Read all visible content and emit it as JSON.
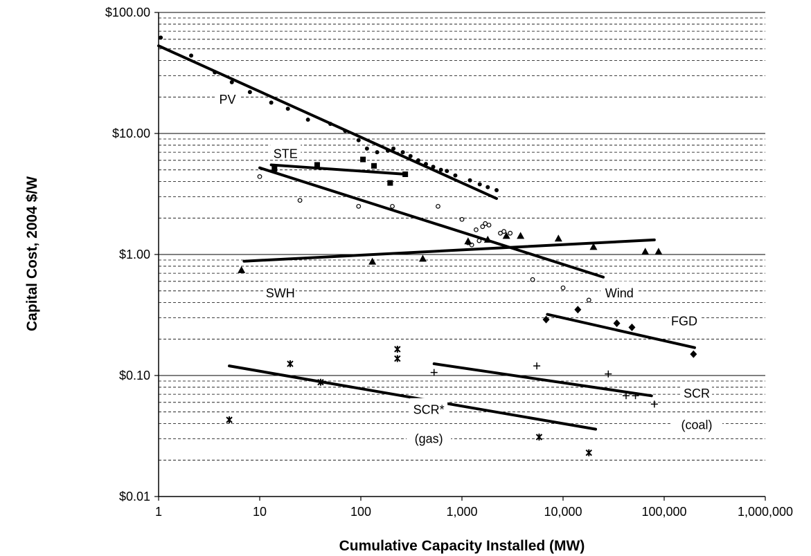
{
  "chart_data": {
    "type": "scatter",
    "title": "",
    "xlabel": "Cumulative Capacity Installed (MW)",
    "ylabel": "Capital Cost, 2004 $/W",
    "xscale": "log",
    "yscale": "log",
    "xlim": [
      1,
      1000000
    ],
    "ylim": [
      0.01,
      100
    ],
    "x_ticks": [
      {
        "value": 1,
        "label": "1"
      },
      {
        "value": 10,
        "label": "10"
      },
      {
        "value": 100,
        "label": "100"
      },
      {
        "value": 1000,
        "label": "1,000"
      },
      {
        "value": 10000,
        "label": "10,000"
      },
      {
        "value": 100000,
        "label": "100,000"
      },
      {
        "value": 1000000,
        "label": "1,000,000"
      }
    ],
    "y_ticks": [
      {
        "value": 0.01,
        "label": "$0.01"
      },
      {
        "value": 0.1,
        "label": "$0.10"
      },
      {
        "value": 1,
        "label": "$1.00"
      },
      {
        "value": 10,
        "label": "$10.00"
      },
      {
        "value": 100,
        "label": "$100.00"
      }
    ],
    "grid": {
      "major_y": "solid",
      "minor_y": "dashed"
    },
    "legend": "none",
    "series": [
      {
        "name": "PV",
        "marker": "dot",
        "points": [
          [
            1.05,
            62
          ],
          [
            2.1,
            44
          ],
          [
            3.6,
            32
          ],
          [
            5.3,
            26.5
          ],
          [
            8,
            22
          ],
          [
            13,
            18
          ],
          [
            19,
            16
          ],
          [
            30,
            13
          ],
          [
            50,
            12
          ],
          [
            70,
            10.5
          ],
          [
            95,
            8.8
          ],
          [
            115,
            7.5
          ],
          [
            145,
            7
          ],
          [
            185,
            7.2
          ],
          [
            210,
            7.5
          ],
          [
            260,
            7
          ],
          [
            310,
            6.5
          ],
          [
            370,
            6
          ],
          [
            440,
            5.6
          ],
          [
            520,
            5.3
          ],
          [
            620,
            5
          ],
          [
            710,
            4.9
          ],
          [
            860,
            4.5
          ],
          [
            1200,
            4.1
          ],
          [
            1500,
            3.8
          ],
          [
            1800,
            3.6
          ],
          [
            2200,
            3.4
          ]
        ],
        "fit": [
          [
            1,
            53
          ],
          [
            2200,
            2.9
          ]
        ]
      },
      {
        "name": "STE",
        "marker": "square",
        "points": [
          [
            14,
            5.1
          ],
          [
            37,
            5.5
          ],
          [
            105,
            6.1
          ],
          [
            135,
            5.4
          ],
          [
            195,
            3.9
          ],
          [
            275,
            4.6
          ]
        ],
        "fit": [
          [
            13,
            5.5
          ],
          [
            280,
            4.6
          ]
        ]
      },
      {
        "name": "Wind",
        "marker": "circle-open",
        "points": [
          [
            10,
            4.4
          ],
          [
            25,
            2.8
          ],
          [
            95,
            2.5
          ],
          [
            205,
            2.5
          ],
          [
            580,
            2.5
          ],
          [
            1000,
            1.95
          ],
          [
            1150,
            1.25
          ],
          [
            1250,
            1.2
          ],
          [
            1380,
            1.6
          ],
          [
            1480,
            1.3
          ],
          [
            1600,
            1.7
          ],
          [
            1700,
            1.8
          ],
          [
            1850,
            1.75
          ],
          [
            2400,
            1.5
          ],
          [
            2600,
            1.55
          ],
          [
            3000,
            1.5
          ],
          [
            5000,
            0.62
          ],
          [
            10000,
            0.53
          ],
          [
            18000,
            0.42
          ]
        ],
        "fit": [
          [
            10,
            5.2
          ],
          [
            25000,
            0.65
          ]
        ]
      },
      {
        "name": "SWH",
        "marker": "triangle",
        "points": [
          [
            6.6,
            0.74
          ],
          [
            130,
            0.87
          ],
          [
            410,
            0.92
          ],
          [
            1150,
            1.28
          ],
          [
            1800,
            1.32
          ],
          [
            2750,
            1.42
          ],
          [
            3800,
            1.42
          ],
          [
            9000,
            1.35
          ],
          [
            20000,
            1.15
          ],
          [
            65000,
            1.05
          ],
          [
            88000,
            1.05
          ]
        ],
        "fit": [
          [
            7,
            0.88
          ],
          [
            80000,
            1.32
          ]
        ]
      },
      {
        "name": "FGD",
        "marker": "diamond",
        "points": [
          [
            6800,
            0.29
          ],
          [
            14000,
            0.35
          ],
          [
            34000,
            0.27
          ],
          [
            48000,
            0.25
          ],
          [
            195000,
            0.15
          ]
        ],
        "fit": [
          [
            7000,
            0.32
          ],
          [
            200000,
            0.17
          ]
        ]
      },
      {
        "name": "SCR (coal)",
        "marker": "plus",
        "points": [
          [
            530,
            0.106
          ],
          [
            5500,
            0.12
          ],
          [
            28000,
            0.103
          ],
          [
            42000,
            0.068
          ],
          [
            52000,
            0.068
          ],
          [
            80000,
            0.058
          ]
        ],
        "fit": [
          [
            530,
            0.125
          ],
          [
            75000,
            0.068
          ]
        ]
      },
      {
        "name": "SCR* (gas)",
        "marker": "star",
        "points": [
          [
            5,
            0.043
          ],
          [
            20,
            0.125
          ],
          [
            40,
            0.088
          ],
          [
            230,
            0.165
          ],
          [
            230,
            0.138
          ],
          [
            350,
            0.06
          ],
          [
            5800,
            0.031
          ],
          [
            18000,
            0.023
          ]
        ],
        "fit": [
          [
            5,
            0.12
          ],
          [
            21000,
            0.036
          ]
        ]
      }
    ],
    "annotations": [
      {
        "text": "PV",
        "x": 4.8,
        "y": 19
      },
      {
        "text": "STE",
        "x": 18,
        "y": 6.8
      },
      {
        "text": "SWH",
        "x": 16,
        "y": 0.48
      },
      {
        "text": "Wind",
        "x": 36000,
        "y": 0.48
      },
      {
        "text": "FGD",
        "x": 158000,
        "y": 0.28
      },
      {
        "text": "SCR",
        "x": 210000,
        "y": 0.071
      },
      {
        "text": "(coal)",
        "x": 210000,
        "y": 0.039
      },
      {
        "text": "SCR*",
        "x": 470,
        "y": 0.052
      },
      {
        "text": "(gas)",
        "x": 470,
        "y": 0.03
      }
    ]
  }
}
